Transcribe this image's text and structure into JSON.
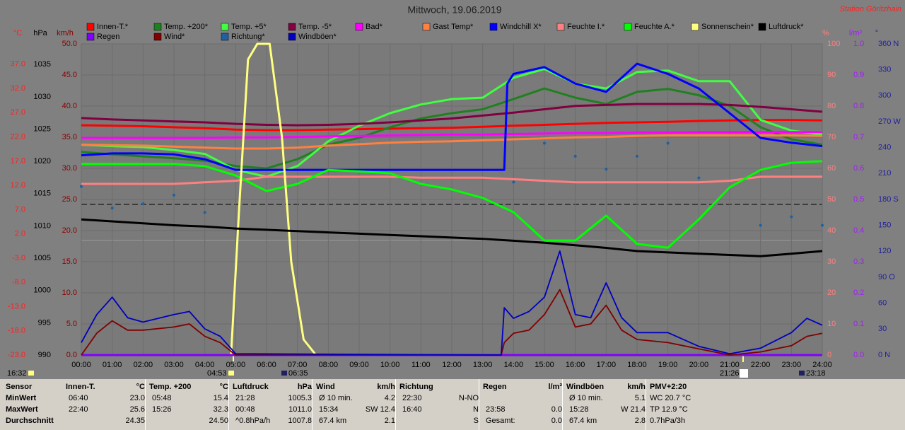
{
  "chart_data": {
    "type": "line",
    "title": "Mittwoch, 19.06.2019",
    "station": "Station Göritzhain",
    "x": [
      0,
      1,
      2,
      3,
      4,
      5,
      6,
      7,
      8,
      9,
      10,
      11,
      12,
      13,
      14,
      15,
      16,
      17,
      18,
      19,
      20,
      21,
      22,
      23,
      24
    ],
    "xlim": [
      0,
      24
    ],
    "xticks": [
      {
        "value": 0,
        "label": "00:00"
      },
      {
        "value": 1,
        "label": "01:00"
      },
      {
        "value": 2,
        "label": "02:00"
      },
      {
        "value": 3,
        "label": "03:00"
      },
      {
        "value": 4,
        "label": "04:00"
      },
      {
        "value": 5,
        "label": "05:00"
      },
      {
        "value": 6,
        "label": "06:00"
      },
      {
        "value": 7,
        "label": "07:00"
      },
      {
        "value": 8,
        "label": "08:00"
      },
      {
        "value": 9,
        "label": "09:00"
      },
      {
        "value": 10,
        "label": "10:00"
      },
      {
        "value": 11,
        "label": "11:00"
      },
      {
        "value": 12,
        "label": "12:00"
      },
      {
        "value": 13,
        "label": "13:00"
      },
      {
        "value": 14,
        "label": "14:00"
      },
      {
        "value": 15,
        "label": "15:00"
      },
      {
        "value": 16,
        "label": "16:00"
      },
      {
        "value": 17,
        "label": "17:00"
      },
      {
        "value": 18,
        "label": "18:00"
      },
      {
        "value": 19,
        "label": "19:00"
      },
      {
        "value": 20,
        "label": "20:00"
      },
      {
        "value": 21,
        "label": "21:00"
      },
      {
        "value": 22,
        "label": "22:00"
      },
      {
        "value": 23,
        "label": "23:00"
      },
      {
        "value": 24,
        "label": "24:00"
      }
    ],
    "grid": true,
    "axes": {
      "temp": {
        "unit": "°C",
        "lim": [
          -23,
          41.2
        ],
        "ticks": [
          {
            "value": -23,
            "label": "-23.0"
          },
          {
            "value": -18,
            "label": "-18.0"
          },
          {
            "value": -13,
            "label": "-13.0"
          },
          {
            "value": -8,
            "label": "-8.0"
          },
          {
            "value": -3,
            "label": "-3.0"
          },
          {
            "value": 2,
            "label": "2.0"
          },
          {
            "value": 7,
            "label": "7.0"
          },
          {
            "value": 12,
            "label": "12.0"
          },
          {
            "value": 17,
            "label": "17.0"
          },
          {
            "value": 22,
            "label": "22.0"
          },
          {
            "value": 27,
            "label": "27.0"
          },
          {
            "value": 32,
            "label": "32.0"
          },
          {
            "value": 37,
            "label": "37.0"
          }
        ]
      },
      "press": {
        "unit": "hPa",
        "lim": [
          990,
          1038.2
        ],
        "ticks": [
          990,
          995,
          1000,
          1005,
          1010,
          1015,
          1020,
          1025,
          1030,
          1035
        ]
      },
      "wind": {
        "unit": "km/h",
        "lim": [
          0,
          50
        ],
        "ticks": [
          {
            "value": 0,
            "label": "0.0"
          },
          {
            "value": 5,
            "label": "5.0"
          },
          {
            "value": 10,
            "label": "10.0"
          },
          {
            "value": 15,
            "label": "15.0"
          },
          {
            "value": 20,
            "label": "20.0"
          },
          {
            "value": 25,
            "label": "25.0"
          },
          {
            "value": 30,
            "label": "30.0"
          },
          {
            "value": 35,
            "label": "35.0"
          },
          {
            "value": 40,
            "label": "40.0"
          },
          {
            "value": 45,
            "label": "45.0"
          },
          {
            "value": 50,
            "label": "50.0"
          }
        ]
      },
      "pct": {
        "unit": "%",
        "lim": [
          0,
          100
        ],
        "ticks": [
          0,
          10,
          20,
          30,
          40,
          50,
          60,
          70,
          80,
          90,
          100
        ]
      },
      "rain": {
        "unit": "l/m²",
        "lim": [
          0,
          1
        ],
        "ticks": [
          {
            "value": 0,
            "label": "0.0"
          },
          {
            "value": 0.1,
            "label": "0.1"
          },
          {
            "value": 0.2,
            "label": "0.2"
          },
          {
            "value": 0.3,
            "label": "0.3"
          },
          {
            "value": 0.4,
            "label": "0.4"
          },
          {
            "value": 0.5,
            "label": "0.5"
          },
          {
            "value": 0.6,
            "label": "0.6"
          },
          {
            "value": 0.7,
            "label": "0.7"
          },
          {
            "value": 0.8,
            "label": "0.8"
          },
          {
            "value": 0.9,
            "label": "0.9"
          },
          {
            "value": 1,
            "label": "1.0"
          }
        ]
      },
      "dir": {
        "unit": "°",
        "lim": [
          0,
          360
        ],
        "ticks": [
          {
            "value": 0,
            "label": "0 N"
          },
          30,
          60,
          {
            "value": 90,
            "label": "90 O"
          },
          120,
          150,
          {
            "value": 180,
            "label": "180 S"
          },
          210,
          240,
          {
            "value": 270,
            "label": "270 W"
          },
          300,
          330,
          {
            "value": 360,
            "label": "360 N"
          }
        ]
      }
    },
    "series": [
      {
        "name": "Innen-T.*",
        "color": "#ff0000",
        "axis": "temp",
        "values": [
          24.4,
          24.3,
          24.2,
          24.0,
          23.8,
          23.5,
          23.4,
          23.4,
          23.5,
          23.6,
          23.7,
          23.8,
          23.9,
          24.1,
          24.3,
          24.5,
          24.7,
          24.9,
          25.0,
          25.1,
          25.3,
          25.4,
          25.5,
          25.5,
          25.4
        ]
      },
      {
        "name": "Temp. +200*",
        "color": "#208020",
        "axis": "temp",
        "values": [
          18.9,
          18.4,
          18.0,
          17.6,
          17.1,
          16.0,
          15.5,
          17.4,
          20.4,
          21.8,
          24.0,
          25.8,
          26.9,
          27.7,
          29.8,
          32.0,
          30.1,
          28.8,
          31.3,
          31.9,
          30.6,
          28.4,
          24.0,
          21.5,
          20.4
        ]
      },
      {
        "name": "Temp. +5*",
        "color": "#40ff40",
        "axis": "temp",
        "values": [
          20.4,
          20.1,
          19.9,
          19.3,
          18.5,
          15.2,
          13.8,
          16.0,
          21.1,
          24.3,
          26.9,
          28.7,
          29.8,
          30.1,
          34.2,
          36.0,
          33.0,
          32.0,
          35.4,
          35.7,
          33.5,
          33.5,
          25.5,
          23.3,
          22.5
        ]
      },
      {
        "name": "Temp. -5*",
        "color": "#800040",
        "axis": "temp",
        "values": [
          25.9,
          25.6,
          25.4,
          25.2,
          25.0,
          24.7,
          24.5,
          24.4,
          24.5,
          24.7,
          25.0,
          25.4,
          25.8,
          26.4,
          27.0,
          27.7,
          28.4,
          28.6,
          28.8,
          28.8,
          28.8,
          28.6,
          28.2,
          27.7,
          27.2
        ]
      },
      {
        "name": "Bad*",
        "color": "#ff00ff",
        "axis": "temp",
        "values": [
          21.8,
          21.8,
          21.8,
          21.8,
          21.8,
          21.9,
          21.9,
          22.0,
          22.1,
          22.2,
          22.3,
          22.4,
          22.5,
          22.5,
          22.6,
          22.7,
          22.8,
          22.8,
          22.9,
          22.9,
          23.0,
          23.0,
          23.0,
          23.0,
          23.0
        ]
      },
      {
        "name": "Gast Temp*",
        "color": "#ff8040",
        "axis": "temp",
        "values": [
          20.4,
          20.3,
          20.2,
          20.0,
          19.8,
          19.6,
          19.6,
          19.8,
          20.2,
          20.5,
          20.8,
          21.0,
          21.1,
          21.3,
          21.5,
          21.7,
          21.9,
          22.0,
          22.2,
          22.3,
          22.3,
          22.3,
          22.3,
          22.3,
          22.2
        ]
      },
      {
        "name": "Windchill X*",
        "color": "#0000ff",
        "axis": "temp",
        "x": [
          0,
          1,
          2,
          3,
          4,
          5,
          6,
          7,
          8,
          9,
          10,
          11,
          12,
          13,
          13.7,
          13.8,
          14,
          15,
          16,
          17,
          18,
          19,
          20,
          21,
          22,
          23,
          24
        ],
        "values": [
          18.2,
          18.6,
          18.6,
          18.4,
          17.4,
          15.2,
          15.2,
          15.2,
          15.2,
          15.2,
          15.2,
          15.2,
          15.2,
          15.2,
          15.2,
          33.0,
          35.0,
          36.4,
          33.0,
          31.3,
          37.1,
          35.0,
          32.0,
          26.9,
          21.8,
          20.8,
          20.1
        ]
      },
      {
        "name": "Feuchte I.*",
        "color": "#ff8080",
        "axis": "pct",
        "values": [
          55,
          55,
          55,
          55,
          55.5,
          56,
          57.3,
          57.3,
          57.3,
          57.3,
          57.3,
          57,
          57,
          57,
          56.5,
          56,
          55.5,
          55.5,
          55.5,
          55.5,
          55.5,
          56,
          57.3,
          57.3,
          57.3
        ]
      },
      {
        "name": "Feuchte A.*",
        "color": "#00ff00",
        "axis": "pct",
        "values": [
          61.4,
          61.4,
          61.4,
          61.4,
          60.7,
          57.7,
          52.7,
          55,
          59.5,
          59,
          58.4,
          55,
          53.2,
          50.5,
          45.9,
          36.8,
          36.8,
          44.8,
          35.7,
          34.5,
          43.6,
          53.9,
          59.5,
          61.8,
          62.3
        ]
      },
      {
        "name": "Sonnenschein*",
        "color": "#ffff80",
        "axis": "pct",
        "x": [
          0,
          4.85,
          5.1,
          5.4,
          5.7,
          6.1,
          6.5,
          6.8,
          7.2,
          7.6,
          24
        ],
        "values": [
          0,
          0,
          45,
          95,
          100,
          100,
          70,
          30,
          5,
          0,
          0
        ]
      },
      {
        "name": "Luftdruck*",
        "color": "#000000",
        "axis": "press",
        "values": [
          1011.0,
          1010.7,
          1010.4,
          1010.1,
          1009.9,
          1009.6,
          1009.4,
          1009.2,
          1009.0,
          1008.8,
          1008.6,
          1008.4,
          1008.2,
          1008.0,
          1007.7,
          1007.4,
          1007.0,
          1006.6,
          1006.1,
          1005.9,
          1005.7,
          1005.5,
          1005.3,
          1005.7,
          1006.1
        ]
      },
      {
        "name": "Regen",
        "color": "#8000ff",
        "axis": "rain",
        "values": [
          0,
          0,
          0,
          0,
          0,
          0,
          0,
          0,
          0,
          0,
          0,
          0,
          0,
          0,
          0,
          0,
          0,
          0,
          0,
          0,
          0,
          0,
          0,
          0,
          0
        ]
      },
      {
        "name": "Wind*",
        "color": "#800000",
        "axis": "wind",
        "x": [
          0,
          0.5,
          1,
          1.5,
          2,
          3,
          3.5,
          4,
          4.5,
          5,
          13.6,
          13.7,
          14,
          14.5,
          15,
          15.5,
          16,
          16.5,
          17,
          17.5,
          18,
          19,
          20,
          21,
          22,
          23,
          23.5,
          24
        ],
        "values": [
          0,
          3.5,
          5.5,
          4.0,
          4.0,
          4.5,
          5.0,
          3.0,
          2.0,
          0,
          0,
          2.0,
          3.5,
          4.0,
          6.5,
          10.5,
          4.5,
          5.0,
          8.0,
          4.0,
          2.5,
          2.0,
          1.0,
          0,
          0.5,
          1.5,
          3.0,
          3.5
        ]
      },
      {
        "name": "Richtung*",
        "color": "#2060a0",
        "axis": "dir",
        "style": "dots",
        "values": [
          195,
          170,
          175,
          185,
          165,
          null,
          null,
          null,
          null,
          null,
          null,
          null,
          null,
          null,
          200,
          245,
          230,
          215,
          230,
          245,
          205,
          null,
          150,
          160,
          150
        ]
      },
      {
        "name": "Windböen*",
        "color": "#0000c0",
        "axis": "wind",
        "x": [
          0,
          0.5,
          1,
          1.5,
          2,
          3,
          3.5,
          4,
          4.5,
          5,
          13.6,
          13.7,
          14,
          14.5,
          15,
          15.5,
          16,
          16.5,
          17,
          17.5,
          18,
          19,
          20,
          21,
          22,
          23,
          23.5,
          24
        ],
        "values": [
          2.0,
          6.5,
          9.3,
          6.0,
          5.3,
          6.5,
          7.0,
          4.2,
          3.0,
          0.2,
          0,
          7.6,
          5.9,
          7.0,
          9.3,
          16.7,
          6.5,
          6.0,
          11.6,
          6.0,
          3.6,
          3.6,
          1.4,
          0.2,
          1.1,
          3.6,
          5.9,
          4.8
        ]
      }
    ],
    "sun_moon": [
      "16:32",
      "04:53",
      "06:35",
      "21:26",
      "23:18"
    ]
  },
  "table": {
    "header": "Sensor",
    "row_labels": [
      "MinWert",
      "MaxWert",
      "Durchschnitt"
    ],
    "columns": [
      {
        "name": "Innen-T.",
        "unit": "°C",
        "cells": [
          [
            "06:40",
            "23.0"
          ],
          [
            "22:40",
            "25.6"
          ],
          [
            null,
            "24.35"
          ]
        ]
      },
      {
        "name": "Temp. +200",
        "unit": "°C",
        "cells": [
          [
            "05:48",
            "15.4"
          ],
          [
            "15:26",
            "32.3"
          ],
          [
            null,
            "24.50"
          ]
        ]
      },
      {
        "name": "Luftdruck",
        "unit": "hPa",
        "cells": [
          [
            "21:28",
            "1005.3"
          ],
          [
            "00:48",
            "1011.0"
          ],
          [
            "^0.8hPa/h",
            "1007.8"
          ]
        ]
      },
      {
        "name": "Wind",
        "unit": "km/h",
        "cells": [
          [
            "Ø 10 min.",
            "4.2"
          ],
          [
            "15:34",
            "SW 12.4"
          ],
          [
            "67.4 km",
            "2.1"
          ]
        ]
      },
      {
        "name": "Richtung",
        "unit": null,
        "cells": [
          [
            "22:30",
            "N-NO"
          ],
          [
            "16:40",
            "N"
          ],
          [
            null,
            "S"
          ]
        ]
      },
      {
        "name": "Regen",
        "unit": "l/m²",
        "cells": [
          [
            null,
            null
          ],
          [
            "23:58",
            "0.0"
          ],
          [
            "Gesamt:",
            "0.0"
          ]
        ]
      },
      {
        "name": "Windböen",
        "unit": "km/h",
        "cells": [
          [
            "Ø 10 min.",
            "5.1"
          ],
          [
            "15:28",
            "W 21.4"
          ],
          [
            "67.4 km",
            "2.8"
          ]
        ]
      },
      {
        "name": "PMV+2:20",
        "unit": null,
        "cells": [
          [
            "WC 20.7 °C",
            null
          ],
          [
            "TP 12.9 °C",
            null
          ],
          [
            "0.7hPa/3h",
            null
          ]
        ]
      }
    ]
  }
}
